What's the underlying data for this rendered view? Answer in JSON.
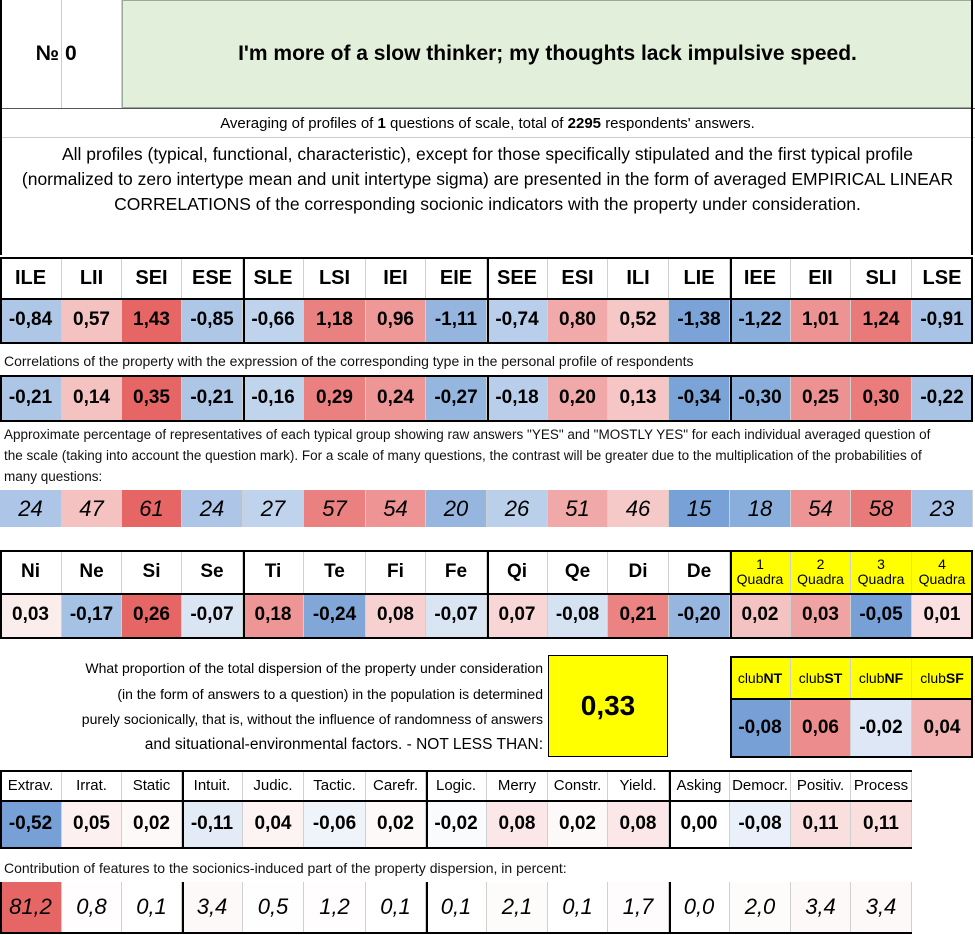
{
  "header": {
    "number_label": "№",
    "number": "0",
    "title": "I'm more of a slow thinker; my thoughts lack impulsive speed."
  },
  "summary": {
    "prefix": "Averaging of profiles of",
    "count": "1",
    "middle": "questions of scale, total of",
    "respondents": "2295",
    "suffix": "respondents' answers."
  },
  "note": "All profiles (typical, functional, characteristic), except for those specifically stipulated and the first typical profile (normalized to zero intertype mean and unit intertype sigma) are presented in the form of averaged EMPIRICAL LINEAR CORRELATIONS of the corresponding socionic indicators with the property under consideration.",
  "types": {
    "names": [
      "ILE",
      "LII",
      "SEI",
      "ESE",
      "SLE",
      "LSI",
      "IEI",
      "EIE",
      "SEE",
      "ESI",
      "ILI",
      "LIE",
      "IEE",
      "EII",
      "SLI",
      "LSE"
    ],
    "profile": [
      "-0,84",
      "0,57",
      "1,43",
      "-0,85",
      "-0,66",
      "1,18",
      "0,96",
      "-1,11",
      "-0,74",
      "0,80",
      "0,52",
      "-1,38",
      "-1,22",
      "1,01",
      "1,24",
      "-0,91"
    ],
    "correlation_caption": "Correlations of the property with the expression of the corresponding type in the personal profile of respondents",
    "correlations": [
      "-0,21",
      "0,14",
      "0,35",
      "-0,21",
      "-0,16",
      "0,29",
      "0,24",
      "-0,27",
      "-0,18",
      "0,20",
      "0,13",
      "-0,34",
      "-0,30",
      "0,25",
      "0,30",
      "-0,22"
    ],
    "percentage_caption": "Approximate percentage of representatives of each typical group showing raw answers \"YES\" and \"MOSTLY YES\" for each individual averaged question of the scale (taking into account the question mark). For a scale of many questions, the contrast will be greater due to the multiplication of the probabilities of many questions:",
    "percentages": [
      "24",
      "47",
      "61",
      "24",
      "27",
      "57",
      "54",
      "20",
      "26",
      "51",
      "46",
      "15",
      "18",
      "54",
      "58",
      "23"
    ]
  },
  "functions": {
    "names": [
      "Ni",
      "Ne",
      "Si",
      "Se",
      "Ti",
      "Te",
      "Fi",
      "Fe",
      "Qi",
      "Qe",
      "Di",
      "De"
    ],
    "values": [
      "0,03",
      "-0,17",
      "0,26",
      "-0,07",
      "0,18",
      "-0,24",
      "0,08",
      "-0,07",
      "0,07",
      "-0,08",
      "0,21",
      "-0,20"
    ],
    "quadras": [
      {
        "num": "1",
        "label": "Quadra"
      },
      {
        "num": "2",
        "label": "Quadra"
      },
      {
        "num": "3",
        "label": "Quadra"
      },
      {
        "num": "4",
        "label": "Quadra"
      }
    ],
    "quadra_values": [
      "0,02",
      "0,03",
      "-0,05",
      "0,01"
    ]
  },
  "dispersion": {
    "question_lines": [
      "What proportion of the total dispersion of the property under consideration",
      "(in the form of answers to a question) in the population is determined",
      "purely socionically, that is, without the influence of randomness of answers",
      "and situational-environmental factors. - NOT LESS THAN:"
    ],
    "value": "0,33",
    "clubs": [
      {
        "prefix": "club",
        "suffix": "NT"
      },
      {
        "prefix": "club",
        "suffix": "ST"
      },
      {
        "prefix": "club",
        "suffix": "NF"
      },
      {
        "prefix": "club",
        "suffix": "SF"
      }
    ],
    "club_values": [
      "-0,08",
      "0,06",
      "-0,02",
      "0,04"
    ]
  },
  "dichotomies": {
    "names": [
      "Extrav.",
      "Irrat.",
      "Static",
      "Intuit.",
      "Judic.",
      "Tactic.",
      "Carefr.",
      "Logic.",
      "Merry",
      "Constr.",
      "Yield.",
      "Asking",
      "Democr.",
      "Positiv.",
      "Process"
    ],
    "values": [
      "-0,52",
      "0,05",
      "0,02",
      "-0,11",
      "0,04",
      "-0,06",
      "0,02",
      "-0,02",
      "0,08",
      "0,02",
      "0,08",
      "0,00",
      "-0,08",
      "0,11",
      "0,11"
    ],
    "contribution_caption": "Contribution of features to the socionics-induced part of the property dispersion, in percent:",
    "contributions": [
      "81,2",
      "0,8",
      "0,1",
      "3,4",
      "0,5",
      "1,2",
      "0,1",
      "0,1",
      "2,1",
      "0,1",
      "1,7",
      "0,0",
      "2,0",
      "3,4",
      "3,4"
    ]
  }
}
